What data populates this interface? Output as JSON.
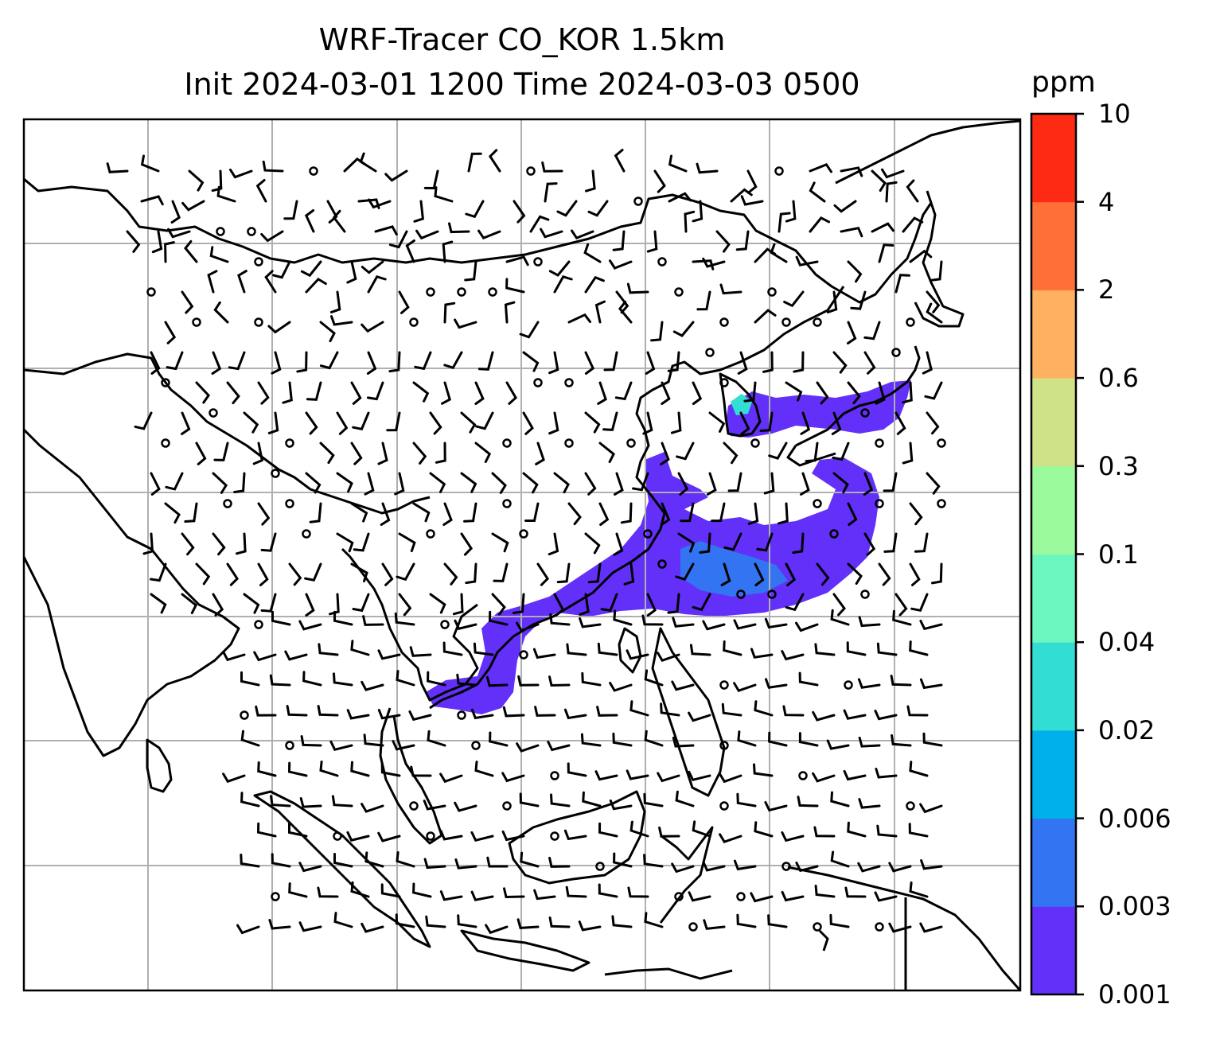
{
  "title": {
    "line1": "WRF-Tracer CO_KOR 1.5km",
    "line2": "Init 2024-03-01 1200 Time 2024-03-03 0500"
  },
  "colorbar": {
    "unit": "ppm",
    "levels": [
      "0.001",
      "0.003",
      "0.006",
      "0.02",
      "0.04",
      "0.1",
      "0.3",
      "0.6",
      "2",
      "4",
      "10"
    ],
    "colors": [
      "#6230f8",
      "#3274f2",
      "#00b0e8",
      "#32ddd4",
      "#6cf7c1",
      "#9bfa9c",
      "#cfe287",
      "#ffb060",
      "#ff7038",
      "#ff2a14"
    ]
  },
  "map": {
    "gridlines": true,
    "gridline_color": "#b0b0b0",
    "coastline_color": "#000000",
    "wind_barb_color": "#000000",
    "field": "CO tracer concentration",
    "plume_color": "#6230f8",
    "plume_inner_color": "#3274f2",
    "plume_peak_color": "#32ddd4"
  }
}
